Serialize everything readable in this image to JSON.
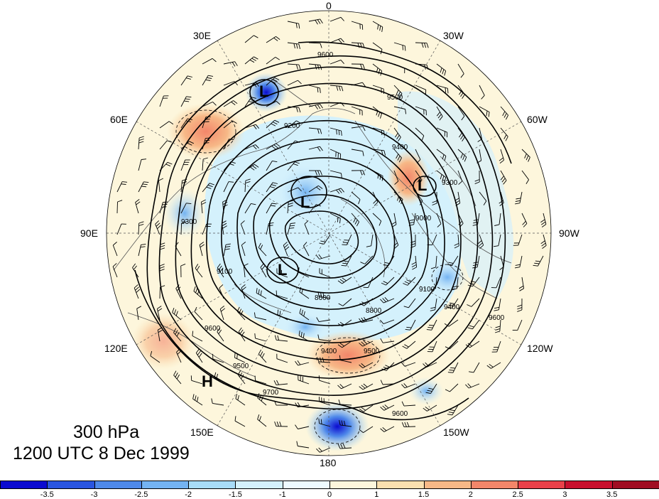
{
  "map": {
    "level_label": "300 hPa",
    "time_label": "1200 UTC 8 Dec 1999",
    "projection": "north-polar-stereographic",
    "longitude_labels": [
      "0",
      "30W",
      "60W",
      "90W",
      "120W",
      "150W",
      "180",
      "150E",
      "120E",
      "90E",
      "60E",
      "30E"
    ],
    "contour_labels": [
      "9600",
      "9500",
      "9400",
      "9300",
      "9200",
      "9100",
      "9000",
      "8800",
      "8600",
      "9700"
    ],
    "centers": {
      "lows": [
        "L",
        "L",
        "L",
        "L"
      ],
      "high": "H"
    },
    "colors": {
      "land_outline": "#555555",
      "contour": "#000000",
      "wind_barb": "#000000"
    }
  },
  "colorbar": {
    "tick_labels": [
      "-3.5",
      "-3",
      "-2.5",
      "-2",
      "-1.5",
      "-1",
      "0",
      "1",
      "1.5",
      "2",
      "2.5",
      "3",
      "3.5"
    ],
    "colors": [
      "#0b0bd0",
      "#2a55e0",
      "#4f89ea",
      "#74b3f2",
      "#a8dcf8",
      "#d4f1fc",
      "#eefaff",
      "#fdf6dc",
      "#fbe0b0",
      "#f7b887",
      "#f3866a",
      "#e9414a",
      "#c8102e",
      "#a00d22"
    ]
  }
}
